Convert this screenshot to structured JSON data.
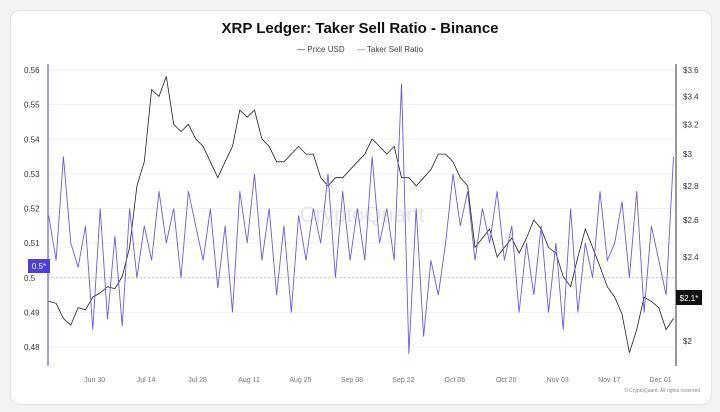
{
  "chart_data": {
    "type": "line",
    "title": "XRP Ledger: Taker Sell Ratio - Binance",
    "legend_position": "top",
    "watermark": "CryptoQuant",
    "footer": "© CryptoQuant. All rights reserved",
    "grid": true,
    "x_tick_labels": [
      "Jun 30",
      "Jul 14",
      "Jul 28",
      "Aug 11",
      "Aug 25",
      "Sep 08",
      "Sep 22",
      "Oct 06",
      "Oct 20",
      "Nov 03",
      "Nov 17",
      "Dec 01"
    ],
    "left_axis": {
      "ticks": [
        "0.56",
        "0.55",
        "0.54",
        "0.53",
        "0.52",
        "0.51",
        "0.5",
        "0.49",
        "0.48"
      ],
      "ylim": [
        0.475,
        0.56
      ],
      "scale": "linear"
    },
    "right_axis": {
      "ticks": [
        "$3.6",
        "$3.4",
        "$3.2",
        "$3",
        "$2.8",
        "$2.6",
        "$2.4",
        "$2"
      ],
      "ylim": [
        1.93,
        3.6
      ],
      "scale": "log"
    },
    "reference_line": 0.5,
    "last_value_labels": {
      "left": "0.5*",
      "right": "$2.1*"
    },
    "x": [
      "Jun 17",
      "Jun 19",
      "Jun 21",
      "Jun 23",
      "Jun 25",
      "Jun 27",
      "Jun 29",
      "Jul 01",
      "Jul 03",
      "Jul 05",
      "Jul 07",
      "Jul 09",
      "Jul 11",
      "Jul 13",
      "Jul 15",
      "Jul 17",
      "Jul 19",
      "Jul 21",
      "Jul 23",
      "Jul 25",
      "Jul 27",
      "Jul 29",
      "Jul 31",
      "Aug 02",
      "Aug 04",
      "Aug 06",
      "Aug 08",
      "Aug 10",
      "Aug 12",
      "Aug 14",
      "Aug 16",
      "Aug 18",
      "Aug 20",
      "Aug 22",
      "Aug 24",
      "Aug 26",
      "Aug 28",
      "Aug 30",
      "Sep 01",
      "Sep 03",
      "Sep 05",
      "Sep 07",
      "Sep 09",
      "Sep 11",
      "Sep 13",
      "Sep 15",
      "Sep 17",
      "Sep 19",
      "Sep 21",
      "Sep 23",
      "Sep 25",
      "Sep 27",
      "Sep 29",
      "Oct 01",
      "Oct 03",
      "Oct 05",
      "Oct 07",
      "Oct 09",
      "Oct 11",
      "Oct 13",
      "Oct 15",
      "Oct 17",
      "Oct 19",
      "Oct 21",
      "Oct 23",
      "Oct 25",
      "Oct 27",
      "Oct 29",
      "Oct 31",
      "Nov 02",
      "Nov 04",
      "Nov 06",
      "Nov 08",
      "Nov 10",
      "Nov 12",
      "Nov 14",
      "Nov 16",
      "Nov 18",
      "Nov 20",
      "Nov 22",
      "Nov 24",
      "Nov 26",
      "Nov 28",
      "Nov 30",
      "Dec 02",
      "Dec 04"
    ],
    "series": [
      {
        "name": "Price USD",
        "color": "#222222",
        "axis": "right",
        "values": [
          2.18,
          2.17,
          2.1,
          2.07,
          2.15,
          2.14,
          2.2,
          2.22,
          2.25,
          2.24,
          2.3,
          2.45,
          2.8,
          2.95,
          3.45,
          3.4,
          3.55,
          3.2,
          3.15,
          3.2,
          3.1,
          3.05,
          2.95,
          2.85,
          2.95,
          3.05,
          3.3,
          3.25,
          3.3,
          3.1,
          3.05,
          2.95,
          2.95,
          3.0,
          3.05,
          3.0,
          3.0,
          2.85,
          2.8,
          2.85,
          2.85,
          2.9,
          2.95,
          3.0,
          3.1,
          3.05,
          3.0,
          3.05,
          2.85,
          2.85,
          2.8,
          2.85,
          2.9,
          3.0,
          3.0,
          2.95,
          2.85,
          2.8,
          2.45,
          2.5,
          2.55,
          2.4,
          2.45,
          2.5,
          2.42,
          2.5,
          2.6,
          2.55,
          2.45,
          2.42,
          2.3,
          2.25,
          2.4,
          2.55,
          2.45,
          2.35,
          2.25,
          2.2,
          2.12,
          1.95,
          2.05,
          2.2,
          2.18,
          2.15,
          2.05,
          2.1
        ]
      },
      {
        "name": "Taker Sell Ratio",
        "color": "#6c5ce7",
        "axis": "left",
        "values": [
          0.518,
          0.505,
          0.535,
          0.51,
          0.503,
          0.515,
          0.485,
          0.52,
          0.488,
          0.512,
          0.486,
          0.52,
          0.5,
          0.515,
          0.505,
          0.525,
          0.51,
          0.52,
          0.5,
          0.525,
          0.515,
          0.505,
          0.52,
          0.497,
          0.515,
          0.49,
          0.525,
          0.51,
          0.53,
          0.505,
          0.52,
          0.495,
          0.515,
          0.49,
          0.518,
          0.505,
          0.52,
          0.51,
          0.53,
          0.5,
          0.525,
          0.505,
          0.52,
          0.505,
          0.535,
          0.51,
          0.52,
          0.505,
          0.556,
          0.478,
          0.52,
          0.483,
          0.505,
          0.495,
          0.51,
          0.53,
          0.515,
          0.525,
          0.505,
          0.52,
          0.51,
          0.525,
          0.505,
          0.515,
          0.49,
          0.51,
          0.495,
          0.515,
          0.49,
          0.51,
          0.485,
          0.52,
          0.49,
          0.51,
          0.5,
          0.525,
          0.505,
          0.51,
          0.522,
          0.5,
          0.525,
          0.49,
          0.515,
          0.505,
          0.495,
          0.535
        ]
      }
    ]
  }
}
